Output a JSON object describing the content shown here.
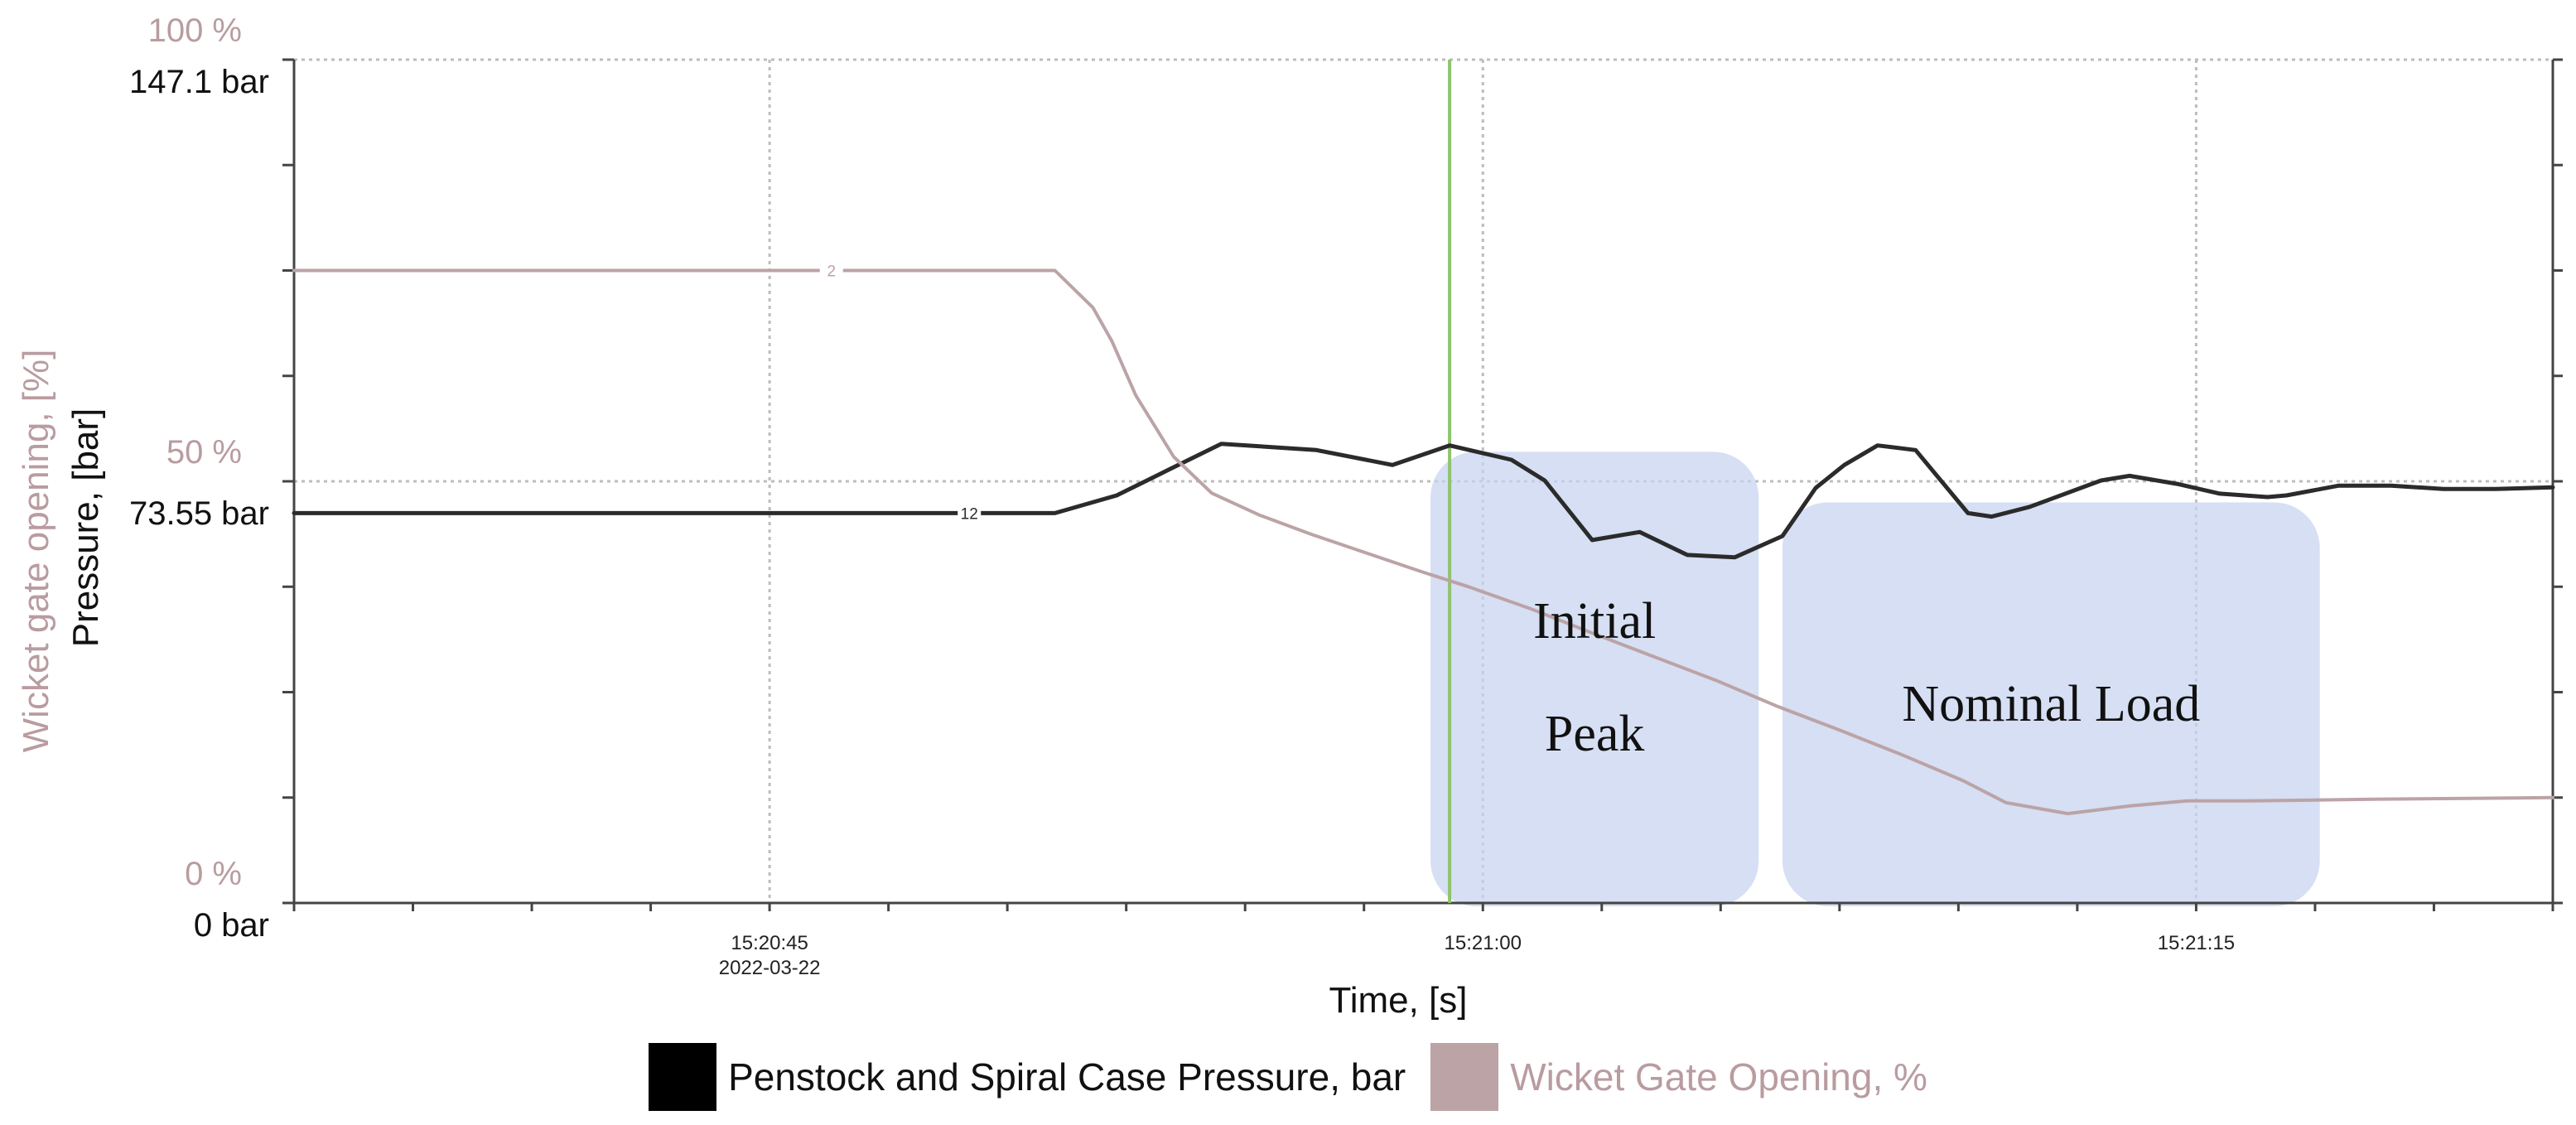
{
  "colors": {
    "pressure": "#2b2b2b",
    "gate": "#bba3a6",
    "gate_text": "#b99ca0",
    "region_fill": "#c6d3ee",
    "marker": "#8fc36f",
    "grid": "#bdbdbd",
    "axis": "#444444"
  },
  "chart_data": {
    "type": "line",
    "xlabel": "Time, [s]",
    "ylabel_left_pressure": "Pressure, [bar]",
    "ylabel_left_gate": "Wicket gate opening, [%]",
    "pressure_axis": {
      "range": [
        0,
        147.1
      ],
      "ticks": [
        "147.1 bar",
        "73.55 bar",
        "0 bar"
      ]
    },
    "gate_axis": {
      "range": [
        0,
        100
      ],
      "ticks": [
        "100 %",
        "50 %",
        "0 %"
      ]
    },
    "x_range": [
      35,
      82.5
    ],
    "x_ticks": [
      {
        "t": 45,
        "label": "15:20:45",
        "sublabel": "2022-03-22"
      },
      {
        "t": 60,
        "label": "15:21:00",
        "sublabel": ""
      },
      {
        "t": 75,
        "label": "15:21:15",
        "sublabel": ""
      }
    ],
    "series": [
      {
        "name": "Penstock and Spiral Case Pressure, bar",
        "axis": "pressure",
        "marker_label": "12",
        "marker_t": 49.2,
        "x": [
          35,
          51,
          52.3,
          53.4,
          54.5,
          56.5,
          58.1,
          59.3,
          60.6,
          61.3,
          62.3,
          63.3,
          64.3,
          65.3,
          66.3,
          67.0,
          67.6,
          68.3,
          69.1,
          70.2,
          70.7,
          71.5,
          73.0,
          73.6,
          74.6,
          75.5,
          76.5,
          76.9,
          78.0,
          79.1,
          80.2,
          81.3,
          82.5
        ],
        "y": [
          68.0,
          68.0,
          71.1,
          75.6,
          80.1,
          79.0,
          76.4,
          79.8,
          77.3,
          73.7,
          63.3,
          64.7,
          60.7,
          60.3,
          64.0,
          72.4,
          76.4,
          79.8,
          79.0,
          68.0,
          67.4,
          69.1,
          73.7,
          74.5,
          73.1,
          71.4,
          70.8,
          71.1,
          72.8,
          72.8,
          72.2,
          72.2,
          72.5
        ]
      },
      {
        "name": "Wicket Gate Opening, %",
        "axis": "gate",
        "marker_label": "2",
        "marker_t": 46.3,
        "x": [
          35,
          51,
          51.8,
          52.2,
          52.7,
          53.5,
          54.3,
          55.3,
          56.4,
          57.6,
          58.7,
          59.7,
          61.0,
          62.3,
          63.6,
          64.9,
          66.2,
          67.5,
          68.8,
          70.1,
          71.0,
          72.3,
          73.6,
          74.8,
          76.1,
          78.7,
          82.5
        ],
        "y": [
          75.0,
          75.0,
          70.6,
          66.6,
          60.2,
          52.9,
          48.6,
          46.0,
          43.7,
          41.4,
          39.3,
          37.5,
          34.9,
          32.0,
          29.2,
          26.4,
          23.3,
          20.5,
          17.6,
          14.5,
          11.9,
          10.6,
          11.5,
          12.1,
          12.1,
          12.3,
          12.5
        ]
      }
    ],
    "regions": [
      {
        "label_lines": [
          "Initial",
          "Peak"
        ],
        "t_start": 58.9,
        "t_end": 65.8,
        "gate_top": 53.5
      },
      {
        "label_lines": [
          "Nominal Load"
        ],
        "t_start": 66.3,
        "t_end": 77.6,
        "gate_top": 47.5
      }
    ],
    "event_marker_t": 59.3,
    "grid": true,
    "legend_position": "bottom-center"
  }
}
